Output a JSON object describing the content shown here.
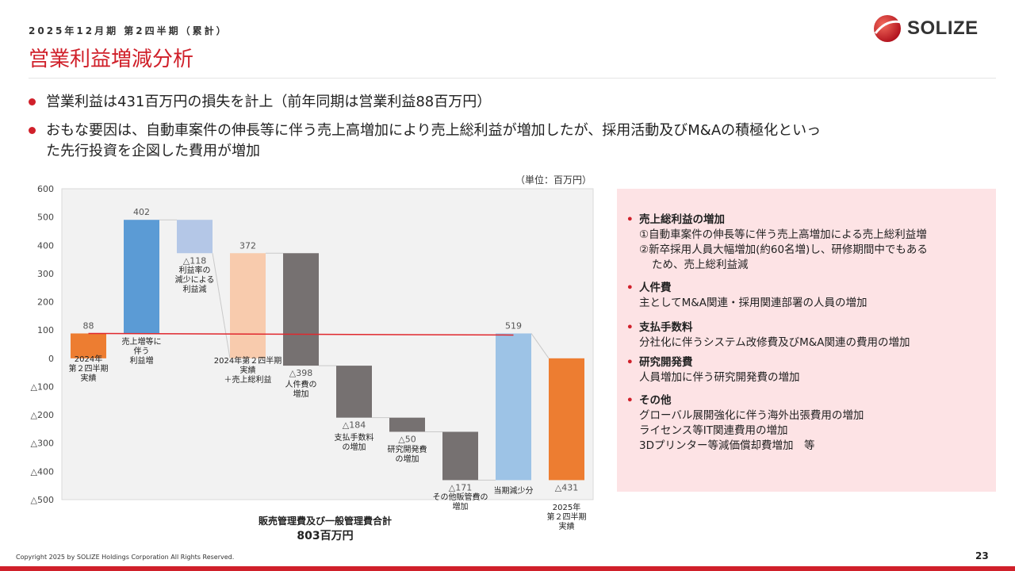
{
  "header": {
    "eyebrow": "2025年12月期 第2四半期（累計）",
    "title": "営業利益増減分析",
    "logo_text": "SOLIZE"
  },
  "bullets": [
    {
      "text": "営業利益は431百万円の損失を計上（前年同期は営業利益88百万円）"
    },
    {
      "line1": "おもな要因は、自動車案件の伸長等に伴う売上高増加により売上総利益が増加したが、採用活動及びM&Aの積極化といっ",
      "line2": "た先行投資を企図した費用が増加"
    }
  ],
  "unit_label": "（単位：百万円）",
  "chart_data": {
    "type": "waterfall",
    "ylim": [
      -500,
      600
    ],
    "yticks": [
      {
        "v": 600,
        "label": "600"
      },
      {
        "v": 500,
        "label": "500"
      },
      {
        "v": 400,
        "label": "400"
      },
      {
        "v": 300,
        "label": "300"
      },
      {
        "v": 200,
        "label": "200"
      },
      {
        "v": 100,
        "label": "100"
      },
      {
        "v": 0,
        "label": "0"
      },
      {
        "v": -100,
        "label": "△100"
      },
      {
        "v": -200,
        "label": "△200"
      },
      {
        "v": -300,
        "label": "△300"
      },
      {
        "v": -400,
        "label": "△400"
      },
      {
        "v": -500,
        "label": "△500"
      }
    ],
    "bars": [
      {
        "key": "prev-actual",
        "from": 0,
        "to": 88,
        "value_label": "88",
        "color": "#ed7d31",
        "cat_lines": [
          "2024年",
          "第２四半期",
          "実績"
        ]
      },
      {
        "key": "sales-increase",
        "from": 88,
        "to": 490,
        "value_label": "402",
        "color": "#5b9bd5",
        "cat_lines": [
          "売上増等に",
          "伴う",
          "利益増"
        ]
      },
      {
        "key": "margin-decrease",
        "from": 490,
        "to": 372,
        "value_label": "△118",
        "color": "#b4c7e7",
        "cat_lines": [
          "利益率の",
          "減少による",
          "利益減"
        ]
      },
      {
        "key": "gross-profit",
        "from": 0,
        "to": 372,
        "value_label": "372",
        "color": "#f8cbad",
        "cat_lines": [
          "2024年第２四半期",
          "実績",
          "＋売上総利益"
        ]
      },
      {
        "key": "personnel",
        "from": 372,
        "to": -26,
        "value_label": "△398",
        "color": "#767171",
        "cat_lines": [
          "人件費の",
          "増加"
        ]
      },
      {
        "key": "fees",
        "from": -26,
        "to": -210,
        "value_label": "△184",
        "color": "#767171",
        "cat_lines": [
          "支払手数料",
          "の増加"
        ]
      },
      {
        "key": "rnd",
        "from": -210,
        "to": -260,
        "value_label": "△50",
        "color": "#767171",
        "cat_lines": [
          "研究開発費",
          "の増加"
        ]
      },
      {
        "key": "other-sga",
        "from": -260,
        "to": -431,
        "value_label": "△171",
        "color": "#767171",
        "cat_lines": [
          "その他販管費の",
          "増加"
        ]
      },
      {
        "key": "period-decrease",
        "from": -431,
        "to": 88,
        "value_label": "519",
        "color": "#9dc3e6",
        "cat_lines": [
          "当期減少分"
        ]
      },
      {
        "key": "curr-actual",
        "from": 0,
        "to": -431,
        "value_label": "△431",
        "color": "#ed7d31",
        "cat_lines": [
          "2025年",
          "第２四半期",
          "実績"
        ]
      }
    ],
    "reference_line_value": 88,
    "sga_total_label": "販売管理費及び一般管理費合計",
    "sga_total_value": "803百万円"
  },
  "factors": [
    {
      "title": "売上総利益の増加",
      "lines": [
        {
          "text": "①自動車案件の伸長等に伴う売上高増加による売上総利益増",
          "indent": false
        },
        {
          "text": "②新卒採用人員大幅増加(約60名増)し、研修期間中でもある",
          "indent": false
        },
        {
          "text": "ため、売上総利益減",
          "indent": true
        }
      ]
    },
    {
      "title": "人件費",
      "lines": [
        {
          "text": "主としてM&A関連・採用関連部署の人員の増加",
          "indent": false
        }
      ]
    },
    {
      "title": "支払手数料",
      "lines": [
        {
          "text": "分社化に伴うシステム改修費及びM&A関連の費用の増加",
          "indent": false
        }
      ]
    },
    {
      "title": "研究開発費",
      "lines": [
        {
          "text": "人員増加に伴う研究開発費の増加",
          "indent": false
        }
      ]
    },
    {
      "title": "その他",
      "lines": [
        {
          "text": "グローバル展開強化に伴う海外出張費用の増加",
          "indent": false
        },
        {
          "text": "ライセンス等IT関連費用の増加",
          "indent": false
        },
        {
          "text": "3Dプリンター等減価償却費増加　等",
          "indent": false
        }
      ]
    }
  ],
  "colors": {
    "accent": "#d0202a",
    "panel": "#fde3e5",
    "plot_bg": "#f2f2f2"
  },
  "footer": {
    "copyright": "Copyright 2025 by SOLIZE Holdings Corporation All Rights Reserved.",
    "page": "23"
  }
}
